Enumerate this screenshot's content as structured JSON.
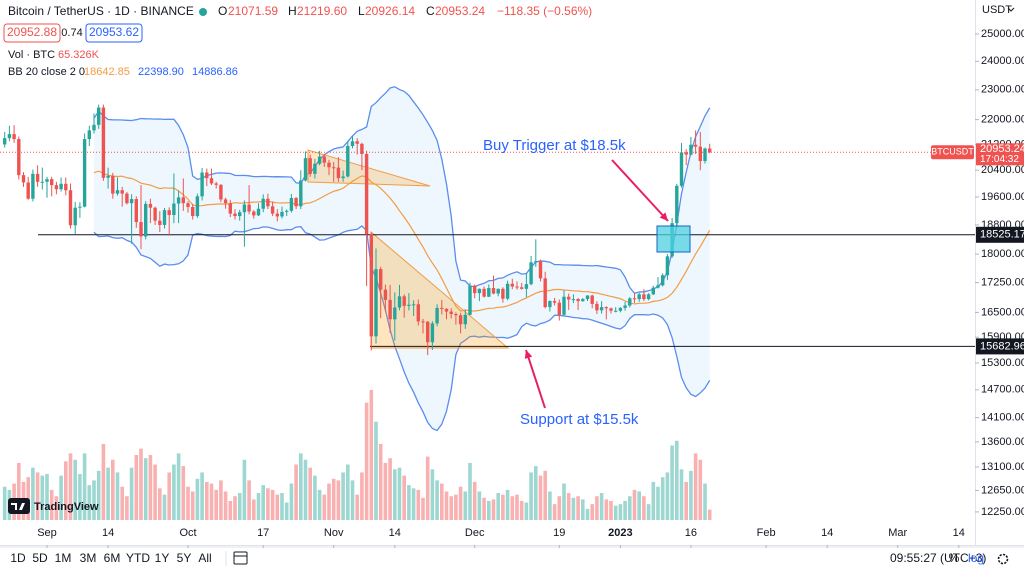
{
  "header": {
    "symbol": "Bitcoin / TetherUS · 1D · BINANCE",
    "ohlc": [
      {
        "key": "O",
        "value": "21071.59"
      },
      {
        "key": "H",
        "value": "21219.60"
      },
      {
        "key": "L",
        "value": "20926.14"
      },
      {
        "key": "C",
        "value": "20953.24"
      }
    ],
    "change": "−118.35 (−0.56%)",
    "bid": "20952.88",
    "spread": "0.74",
    "ask": "20953.62",
    "volume_label": "Vol · BTC",
    "bb_label": "BB 20 close 2 0",
    "bb_values": [
      "18642.85",
      "22398.90",
      "14886.86"
    ],
    "currency": "USDT",
    "brand": "TradingView"
  },
  "toolbar": {
    "ranges": [
      "1D",
      "5D",
      "1M",
      "3M",
      "6M",
      "YTD",
      "1Y",
      "5Y",
      "All"
    ],
    "clock": "09:55:27 (UTC+3)",
    "percent": "%",
    "log": "log"
  },
  "chart_data": {
    "type": "candlestick",
    "log_scale": true,
    "grid": false,
    "up_color": "#26a69a",
    "down_color": "#ef5350",
    "bb": {
      "length": 20,
      "mult": 2,
      "band_color": "#5b8def",
      "basis_color": "#f59b42"
    },
    "annotations": [
      "Buy Trigger at $18.5k",
      "Support at $15.5k"
    ],
    "symbol_tag": "BTCUSDT",
    "countdown": "17:04:32",
    "hlines": [
      {
        "value": 18525.17,
        "label": "18525.17"
      },
      {
        "value": 15682.96,
        "label": "15682.96"
      }
    ],
    "ylim": [
      11660,
      26300
    ],
    "yticks": [
      {
        "value": 25000,
        "label": "25000.00"
      },
      {
        "value": 24000,
        "label": "24000.00"
      },
      {
        "value": 23000,
        "label": "23000.00"
      },
      {
        "value": 22000,
        "label": "22000.00"
      },
      {
        "value": 21200,
        "label": "21200.00"
      },
      {
        "value": 20400,
        "label": "20400.00"
      },
      {
        "value": 19600,
        "label": "19600.00"
      },
      {
        "value": 18800,
        "label": "18800.00"
      },
      {
        "value": 18000,
        "label": "18000.00"
      },
      {
        "value": 17250,
        "label": "17250.00"
      },
      {
        "value": 16500,
        "label": "16500.00"
      },
      {
        "value": 15900,
        "label": "15900.00"
      },
      {
        "value": 15300,
        "label": "15300.00"
      },
      {
        "value": 14700,
        "label": "14700.00"
      },
      {
        "value": 14100,
        "label": "14100.00"
      },
      {
        "value": 13600,
        "label": "13600.00"
      },
      {
        "value": 13100,
        "label": "13100.00"
      },
      {
        "value": 12650,
        "label": "12650.00"
      },
      {
        "value": 12250,
        "label": "12250.00"
      }
    ],
    "xticks": [
      {
        "value": 9,
        "label": "Sep"
      },
      {
        "value": 22,
        "label": "14"
      },
      {
        "value": 39,
        "label": "Oct"
      },
      {
        "value": 55,
        "label": "17"
      },
      {
        "value": 70,
        "label": "Nov"
      },
      {
        "value": 83,
        "label": "14"
      },
      {
        "value": 100,
        "label": "Dec"
      },
      {
        "value": 118,
        "label": "19"
      },
      {
        "value": 131,
        "label": "2023"
      },
      {
        "value": 146,
        "label": "16"
      },
      {
        "value": 162,
        "label": "Feb"
      },
      {
        "value": 175,
        "label": "14"
      },
      {
        "value": 190,
        "label": "Mar"
      },
      {
        "value": 203,
        "label": "14"
      }
    ],
    "volume_value_label": "65.326K",
    "candles": [
      [
        21200,
        21600,
        21100,
        21400
      ],
      [
        21400,
        21800,
        21300,
        21530
      ],
      [
        21530,
        21820,
        21250,
        21370
      ],
      [
        21370,
        21450,
        20120,
        20250
      ],
      [
        20250,
        20340,
        19900,
        20030
      ],
      [
        20030,
        20200,
        19520,
        19550
      ],
      [
        19550,
        20420,
        19470,
        20290
      ],
      [
        20290,
        20550,
        19900,
        20050
      ],
      [
        20050,
        20480,
        19820,
        20050
      ],
      [
        20050,
        20200,
        19580,
        20130
      ],
      [
        20130,
        20200,
        19620,
        19950
      ],
      [
        19950,
        20050,
        19680,
        19830
      ],
      [
        19830,
        20180,
        19760,
        19990
      ],
      [
        19990,
        20180,
        19650,
        19800
      ],
      [
        19800,
        20000,
        18700,
        18790
      ],
      [
        18790,
        19460,
        18540,
        19290
      ],
      [
        19290,
        19450,
        19000,
        19320
      ],
      [
        19320,
        21550,
        19300,
        21370
      ],
      [
        21370,
        21800,
        21150,
        21650
      ],
      [
        21650,
        22200,
        21550,
        21830
      ],
      [
        21830,
        22500,
        21700,
        22400
      ],
      [
        22400,
        22500,
        20080,
        20170
      ],
      [
        20170,
        20480,
        19850,
        20230
      ],
      [
        20230,
        20320,
        19550,
        19700
      ],
      [
        19700,
        20180,
        19640,
        19800
      ],
      [
        19800,
        19900,
        19320,
        19700
      ],
      [
        19700,
        19750,
        19380,
        19420
      ],
      [
        19420,
        19680,
        18280,
        19540
      ],
      [
        19540,
        19620,
        18720,
        18880
      ],
      [
        18880,
        19950,
        18130,
        18480
      ],
      [
        18480,
        19480,
        18400,
        19400
      ],
      [
        19400,
        19550,
        18850,
        19290
      ],
      [
        19290,
        19320,
        18800,
        18920
      ],
      [
        18920,
        19190,
        18600,
        18800
      ],
      [
        18800,
        19280,
        18700,
        19220
      ],
      [
        19220,
        19300,
        18500,
        19080
      ],
      [
        19080,
        20300,
        18850,
        19410
      ],
      [
        19410,
        19790,
        18850,
        19590
      ],
      [
        19590,
        20150,
        19200,
        19420
      ],
      [
        19420,
        19480,
        19150,
        19310
      ],
      [
        19310,
        19400,
        18950,
        19050
      ],
      [
        19050,
        19700,
        19000,
        19620
      ],
      [
        19620,
        20470,
        19500,
        20330
      ],
      [
        20330,
        20450,
        19920,
        20160
      ],
      [
        20160,
        20450,
        19950,
        20000
      ],
      [
        20000,
        20050,
        19850,
        19960
      ],
      [
        19960,
        19980,
        19450,
        19530
      ],
      [
        19530,
        19580,
        19260,
        19420
      ],
      [
        19420,
        19520,
        19020,
        19120
      ],
      [
        19120,
        19250,
        18950,
        19050
      ],
      [
        19050,
        19230,
        18920,
        19160
      ],
      [
        19160,
        19500,
        18200,
        19380
      ],
      [
        19380,
        19950,
        19100,
        19180
      ],
      [
        19180,
        19220,
        18980,
        19070
      ],
      [
        19070,
        19420,
        19050,
        19260
      ],
      [
        19260,
        19680,
        19160,
        19550
      ],
      [
        19550,
        19700,
        19250,
        19330
      ],
      [
        19330,
        19470,
        19050,
        19120
      ],
      [
        19120,
        19250,
        18900,
        19040
      ],
      [
        19040,
        19320,
        18980,
        19170
      ],
      [
        19170,
        19240,
        19050,
        19200
      ],
      [
        19200,
        19690,
        19150,
        19570
      ],
      [
        19570,
        19600,
        19250,
        19330
      ],
      [
        19330,
        20400,
        19250,
        20090
      ],
      [
        20090,
        20980,
        20060,
        20770
      ],
      [
        20770,
        20880,
        20200,
        20290
      ],
      [
        20290,
        20750,
        20150,
        20600
      ],
      [
        20600,
        21000,
        20550,
        20820
      ],
      [
        20820,
        20900,
        20500,
        20630
      ],
      [
        20630,
        20720,
        20250,
        20490
      ],
      [
        20490,
        20650,
        20050,
        20480
      ],
      [
        20480,
        20800,
        20050,
        20160
      ],
      [
        20160,
        20390,
        20050,
        20210
      ],
      [
        20210,
        21300,
        20180,
        21150
      ],
      [
        21150,
        21470,
        21080,
        21300
      ],
      [
        21300,
        21400,
        20880,
        21220
      ],
      [
        21220,
        21250,
        20400,
        20900
      ],
      [
        20900,
        21000,
        17160,
        18540
      ],
      [
        18540,
        18590,
        15590,
        15920
      ],
      [
        15920,
        18150,
        15750,
        17600
      ],
      [
        17600,
        17660,
        16360,
        17070
      ],
      [
        17070,
        17200,
        16530,
        16810
      ],
      [
        16810,
        17190,
        16000,
        16330
      ],
      [
        16330,
        17000,
        15820,
        16620
      ],
      [
        16620,
        17190,
        16550,
        16900
      ],
      [
        16900,
        16950,
        16370,
        16660
      ],
      [
        16660,
        16980,
        16550,
        16690
      ],
      [
        16690,
        16800,
        16410,
        16700
      ],
      [
        16700,
        16820,
        16180,
        16280
      ],
      [
        16280,
        16340,
        15990,
        16270
      ],
      [
        16270,
        16290,
        15480,
        15780
      ],
      [
        15780,
        16280,
        15600,
        16230
      ],
      [
        16230,
        16700,
        16160,
        16610
      ],
      [
        16610,
        16810,
        16450,
        16590
      ],
      [
        16590,
        16600,
        16330,
        16520
      ],
      [
        16520,
        16600,
        16350,
        16460
      ],
      [
        16460,
        16500,
        16200,
        16430
      ],
      [
        16430,
        16490,
        15990,
        16210
      ],
      [
        16210,
        16560,
        16100,
        16440
      ],
      [
        16440,
        17250,
        16430,
        17170
      ],
      [
        17170,
        17200,
        16850,
        16980
      ],
      [
        16980,
        17100,
        16780,
        17090
      ],
      [
        17090,
        17150,
        16870,
        16890
      ],
      [
        16890,
        17200,
        16880,
        17110
      ],
      [
        17110,
        17430,
        16950,
        16970
      ],
      [
        16970,
        17100,
        16900,
        17090
      ],
      [
        17090,
        17130,
        16740,
        16840
      ],
      [
        16840,
        17300,
        16800,
        17220
      ],
      [
        17220,
        17350,
        17080,
        17150
      ],
      [
        17150,
        17280,
        17070,
        17130
      ],
      [
        17130,
        17240,
        17070,
        17090
      ],
      [
        17090,
        17500,
        16880,
        17210
      ],
      [
        17210,
        17950,
        17180,
        17780
      ],
      [
        17780,
        18400,
        17660,
        17810
      ],
      [
        17810,
        17850,
        17280,
        17360
      ],
      [
        17360,
        17530,
        16600,
        16630
      ],
      [
        16630,
        16800,
        16520,
        16780
      ],
      [
        16780,
        16860,
        16670,
        16740
      ],
      [
        16740,
        16820,
        16300,
        16440
      ],
      [
        16440,
        17050,
        16400,
        16890
      ],
      [
        16890,
        16970,
        16560,
        16820
      ],
      [
        16820,
        16950,
        16730,
        16830
      ],
      [
        16830,
        16860,
        16560,
        16780
      ],
      [
        16780,
        16860,
        16760,
        16830
      ],
      [
        16830,
        16930,
        16780,
        16920
      ],
      [
        16920,
        16940,
        16600,
        16710
      ],
      [
        16710,
        16780,
        16460,
        16550
      ],
      [
        16550,
        16780,
        16470,
        16630
      ],
      [
        16630,
        16650,
        16330,
        16600
      ],
      [
        16600,
        16620,
        16470,
        16540
      ],
      [
        16540,
        16630,
        16500,
        16540
      ],
      [
        16540,
        16630,
        16500,
        16610
      ],
      [
        16610,
        16760,
        16540,
        16670
      ],
      [
        16670,
        16880,
        16620,
        16850
      ],
      [
        16850,
        17000,
        16740,
        16830
      ],
      [
        16830,
        16990,
        16760,
        16950
      ],
      [
        16950,
        17080,
        16780,
        16830
      ],
      [
        16830,
        16980,
        16800,
        16950
      ],
      [
        16950,
        17170,
        16930,
        17120
      ],
      [
        17120,
        17390,
        17100,
        17180
      ],
      [
        17180,
        17490,
        17150,
        17440
      ],
      [
        17440,
        18000,
        17320,
        17940
      ],
      [
        17940,
        19000,
        17900,
        18850
      ],
      [
        18850,
        19990,
        18700,
        19930
      ],
      [
        19930,
        21250,
        19880,
        20950
      ],
      [
        20950,
        21050,
        20550,
        20880
      ],
      [
        20880,
        21440,
        20850,
        21190
      ],
      [
        21190,
        21650,
        20900,
        21130
      ],
      [
        21130,
        21600,
        20400,
        20680
      ],
      [
        20680,
        21100,
        20600,
        21071.59
      ],
      [
        21071.59,
        21219.6,
        20926.14,
        20953.24
      ]
    ],
    "volume": [
      210000,
      190000,
      230000,
      360000,
      240000,
      270000,
      330000,
      300000,
      280000,
      290000,
      190000,
      150000,
      280000,
      370000,
      420000,
      380000,
      290000,
      420000,
      220000,
      250000,
      310000,
      480000,
      330000,
      380000,
      300000,
      210000,
      150000,
      330000,
      410000,
      450000,
      390000,
      410000,
      350000,
      200000,
      160000,
      300000,
      350000,
      420000,
      340000,
      210000,
      180000,
      260000,
      300000,
      240000,
      230000,
      190000,
      250000,
      180000,
      120000,
      150000,
      170000,
      380000,
      250000,
      130000,
      170000,
      220000,
      200000,
      190000,
      160000,
      170000,
      110000,
      230000,
      350000,
      420000,
      380000,
      330000,
      280000,
      190000,
      160000,
      230000,
      260000,
      250000,
      300000,
      350000,
      250000,
      160000,
      300000,
      740000,
      820000,
      620000,
      480000,
      360000,
      390000,
      320000,
      330000,
      280000,
      220000,
      200000,
      190000,
      140000,
      400000,
      320000,
      250000,
      230000,
      180000,
      150000,
      160000,
      210000,
      180000,
      360000,
      240000,
      180000,
      140000,
      120000,
      130000,
      170000,
      160000,
      190000,
      150000,
      160000,
      120000,
      110000,
      300000,
      340000,
      280000,
      310000,
      180000,
      100000,
      150000,
      230000,
      170000,
      140000,
      150000,
      130000,
      70000,
      100000,
      150000,
      170000,
      130000,
      120000,
      90000,
      100000,
      120000,
      150000,
      190000,
      180000,
      150000,
      100000,
      240000,
      210000,
      270000,
      300000,
      470000,
      500000,
      320000,
      240000,
      310000,
      420000,
      380000,
      230000,
      65326
    ]
  }
}
